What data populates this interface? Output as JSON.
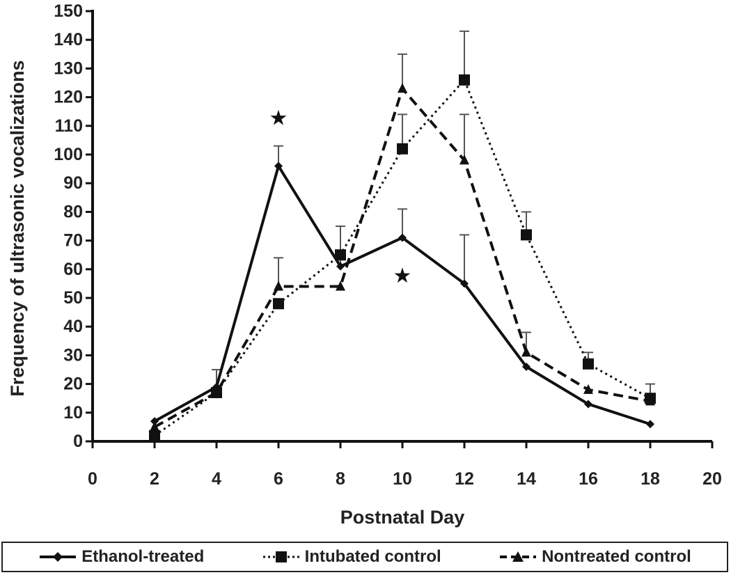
{
  "chart_data": {
    "type": "line",
    "xlabel": "Postnatal Day",
    "ylabel": "Frequency of ultrasonic vocalizations",
    "xlim": [
      0,
      20
    ],
    "ylim": [
      0,
      150
    ],
    "xticks": [
      "0",
      "2",
      "4",
      "6",
      "8",
      "10",
      "12",
      "14",
      "16",
      "18",
      "20"
    ],
    "yticks": [
      "0",
      "10",
      "20",
      "30",
      "40",
      "50",
      "60",
      "70",
      "80",
      "90",
      "100",
      "110",
      "120",
      "130",
      "140",
      "150"
    ],
    "grid": false,
    "legend_position": "bottom",
    "series": [
      {
        "name": "Ethanol-treated",
        "line_style": "solid",
        "marker": "diamond",
        "x": [
          2,
          4,
          6,
          8,
          10,
          12,
          14,
          16,
          18
        ],
        "values": [
          7,
          19,
          96,
          61,
          71,
          55,
          26,
          13,
          6
        ],
        "error": [
          0,
          6,
          7,
          5,
          10,
          17,
          0,
          0,
          0
        ]
      },
      {
        "name": "Intubated control",
        "line_style": "dotted",
        "marker": "square",
        "x": [
          2,
          4,
          6,
          8,
          10,
          12,
          14,
          16,
          18
        ],
        "values": [
          2,
          17,
          48,
          65,
          102,
          126,
          72,
          27,
          15
        ],
        "error": [
          0,
          0,
          0,
          10,
          12,
          17,
          8,
          4,
          5
        ]
      },
      {
        "name": "Nontreated control",
        "line_style": "dashed",
        "marker": "triangle",
        "x": [
          2,
          4,
          6,
          8,
          10,
          12,
          14,
          16,
          18
        ],
        "values": [
          5,
          17,
          54,
          54,
          123,
          98,
          31,
          18,
          14
        ],
        "error": [
          0,
          0,
          10,
          0,
          12,
          16,
          7,
          0,
          0
        ]
      }
    ],
    "annotations": [
      {
        "symbol": "★",
        "x": 6,
        "y": 113
      },
      {
        "symbol": "★",
        "x": 10,
        "y": 58
      }
    ]
  }
}
